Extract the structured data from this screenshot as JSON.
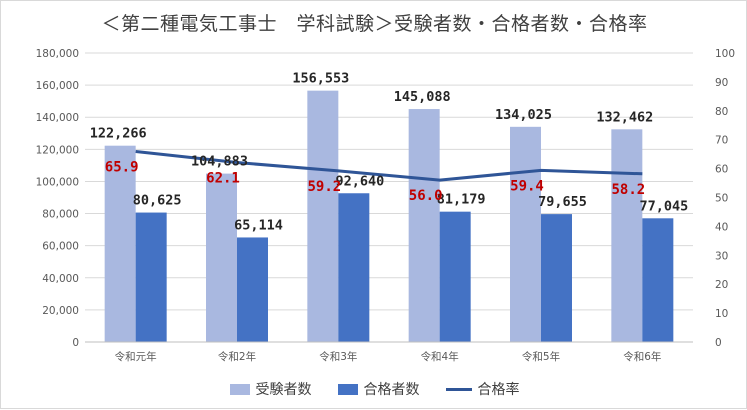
{
  "chart_data": {
    "type": "bar",
    "title": "＜第二種電気工事士　学科試験＞受験者数・合格者数・合格率",
    "categories": [
      "令和元年",
      "令和2年",
      "令和3年",
      "令和4年",
      "令和5年",
      "令和6年"
    ],
    "series": [
      {
        "name": "受験者数",
        "type": "bar",
        "axis": "left",
        "color": "#a9b8e0",
        "values": [
          122266,
          104883,
          156553,
          145088,
          134025,
          132462
        ],
        "labels": [
          "122,266",
          "104,883",
          "156,553",
          "145,088",
          "134,025",
          "132,462"
        ]
      },
      {
        "name": "合格者数",
        "type": "bar",
        "axis": "left",
        "color": "#4472c4",
        "values": [
          80625,
          65114,
          92640,
          81179,
          79655,
          77045
        ],
        "labels": [
          "80,625",
          "65,114",
          "92,640",
          "81,179",
          "79,655",
          "77,045"
        ]
      },
      {
        "name": "合格率",
        "type": "line",
        "axis": "right",
        "color": "#2f5597",
        "values": [
          65.9,
          62.1,
          59.2,
          56.0,
          59.4,
          58.2
        ],
        "labels": [
          "65.9",
          "62.1",
          "59.2",
          "56.0",
          "59.4",
          "58.2"
        ],
        "label_color": "#c00000"
      }
    ],
    "ylim_left": [
      0,
      180000
    ],
    "ylim_right": [
      0,
      100
    ],
    "yticks_left": [
      "0",
      "20,000",
      "40,000",
      "60,000",
      "80,000",
      "100,000",
      "120,000",
      "140,000",
      "160,000",
      "180,000"
    ],
    "yticks_right": [
      "0",
      "10",
      "20",
      "30",
      "40",
      "50",
      "60",
      "70",
      "80",
      "90",
      "100"
    ],
    "grid": true,
    "legend": "bottom"
  }
}
